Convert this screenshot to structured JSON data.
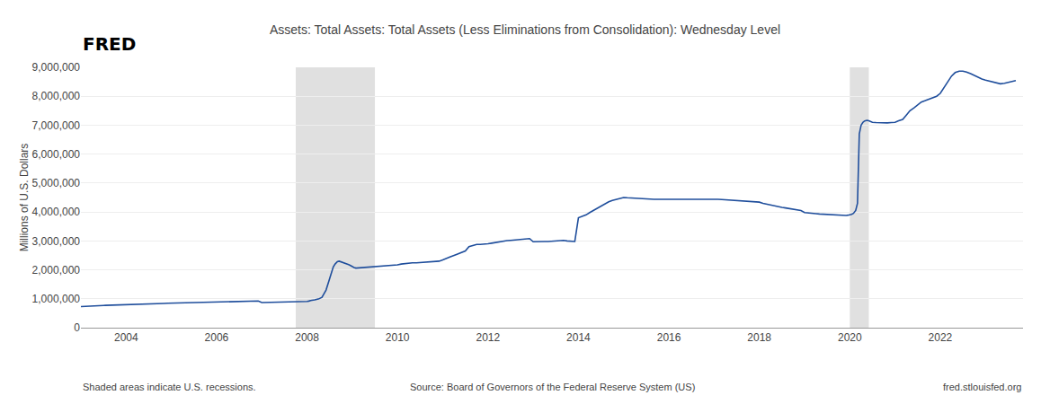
{
  "chart_data": {
    "type": "line",
    "title": "Assets: Total Assets: Total Assets (Less Eliminations from Consolidation): Wednesday Level",
    "ylabel": "Millions of U.S. Dollars",
    "annotations": [
      "FRED",
      "Shaded areas indicate U.S. recessions.",
      "Source: Board of Governors of the Federal Reserve System (US)",
      "fred.stlouisfed.org"
    ],
    "color": "#1f4e9c",
    "grid": "y",
    "recessions": {
      "ranges": [
        [
          2007.75,
          2009.5
        ],
        [
          2020.0,
          2020.42
        ]
      ],
      "color": "#d0d0d0"
    },
    "xlim": [
      2003.0,
      2023.83
    ],
    "ylim": [
      0,
      9000000
    ],
    "xticks": [
      2004,
      2006,
      2008,
      2010,
      2012,
      2014,
      2016,
      2018,
      2020,
      2022
    ],
    "yticks": [
      0,
      {
        "value": 1000000,
        "label": "1,000,000"
      },
      {
        "value": 2000000,
        "label": "2,000,000"
      },
      {
        "value": 3000000,
        "label": "3,000,000"
      },
      {
        "value": 4000000,
        "label": "4,000,000"
      },
      {
        "value": 5000000,
        "label": "5,000,000"
      },
      {
        "value": 6000000,
        "label": "6,000,000"
      },
      {
        "value": 7000000,
        "label": "7,000,000"
      },
      {
        "value": 8000000,
        "label": "8,000,000"
      },
      {
        "value": 9000000,
        "label": "9,000,000"
      }
    ],
    "x": [
      2003.0,
      2003.04,
      2003.08,
      2003.12,
      2003.17,
      2003.21,
      2003.25,
      2003.29,
      2003.33,
      2003.38,
      2003.42,
      2003.46,
      2003.5,
      2003.54,
      2003.58,
      2003.62,
      2003.67,
      2003.71,
      2003.75,
      2003.79,
      2003.83,
      2003.88,
      2003.92,
      2003.96,
      2004.0,
      2004.08,
      2004.17,
      2004.25,
      2004.33,
      2004.42,
      2004.5,
      2004.58,
      2004.67,
      2004.75,
      2004.83,
      2004.92,
      2005.0,
      2005.08,
      2005.17,
      2005.25,
      2005.33,
      2005.42,
      2005.5,
      2005.58,
      2005.67,
      2005.75,
      2005.83,
      2005.92,
      2006.0,
      2006.08,
      2006.17,
      2006.25,
      2006.33,
      2006.42,
      2006.5,
      2006.58,
      2006.67,
      2006.75,
      2006.83,
      2006.92,
      2007.0,
      2007.08,
      2007.17,
      2007.25,
      2007.33,
      2007.42,
      2007.5,
      2007.58,
      2007.67,
      2007.75,
      2007.83,
      2007.88,
      2008.0,
      2008.04,
      2008.08,
      2008.17,
      2008.25,
      2008.33,
      2008.42,
      2008.5,
      2008.58,
      2008.62,
      2008.67,
      2008.71,
      2008.75,
      2008.79,
      2008.83,
      2008.88,
      2008.92,
      2008.96,
      2009.0,
      2009.04,
      2009.08,
      2009.17,
      2009.25,
      2009.33,
      2009.42,
      2009.5,
      2009.58,
      2009.67,
      2009.75,
      2009.83,
      2009.92,
      2010.0,
      2010.08,
      2010.17,
      2010.25,
      2010.33,
      2010.42,
      2010.5,
      2010.58,
      2010.67,
      2010.75,
      2010.83,
      2010.92,
      2011.0,
      2011.08,
      2011.17,
      2011.25,
      2011.33,
      2011.42,
      2011.5,
      2011.58,
      2011.67,
      2011.75,
      2011.83,
      2011.92,
      2012.0,
      2012.08,
      2012.17,
      2012.25,
      2012.33,
      2012.42,
      2012.5,
      2012.58,
      2012.67,
      2012.75,
      2012.83,
      2012.92,
      2013.0,
      2013.08,
      2013.17,
      2013.25,
      2013.33,
      2013.42,
      2013.5,
      2013.58,
      2013.67,
      2013.75,
      2013.83,
      2013.92,
      2014.0,
      2014.08,
      2014.17,
      2014.25,
      2014.33,
      2014.42,
      2014.5,
      2014.58,
      2014.67,
      2014.75,
      2014.83,
      2014.92,
      2015.0,
      2015.08,
      2015.17,
      2015.25,
      2015.33,
      2015.42,
      2015.5,
      2015.58,
      2015.67,
      2015.75,
      2015.83,
      2015.92,
      2016.0,
      2016.08,
      2016.17,
      2016.25,
      2016.33,
      2016.42,
      2016.5,
      2016.58,
      2016.67,
      2016.75,
      2016.83,
      2016.92,
      2017.0,
      2017.08,
      2017.17,
      2017.25,
      2017.33,
      2017.42,
      2017.5,
      2017.58,
      2017.67,
      2017.75,
      2017.83,
      2017.92,
      2018.0,
      2018.08,
      2018.17,
      2018.25,
      2018.33,
      2018.42,
      2018.5,
      2018.58,
      2018.67,
      2018.75,
      2018.83,
      2018.92,
      2019.0,
      2019.08,
      2019.17,
      2019.25,
      2019.33,
      2019.42,
      2019.5,
      2019.58,
      2019.67,
      2019.75,
      2019.83,
      2019.88,
      2019.92,
      2019.96,
      2020.0,
      2020.04,
      2020.08,
      2020.13,
      2020.17,
      2020.21,
      2020.25,
      2020.29,
      2020.33,
      2020.38,
      2020.42,
      2020.46,
      2020.5,
      2020.58,
      2020.67,
      2020.75,
      2020.83,
      2020.92,
      2021.0,
      2021.08,
      2021.17,
      2021.25,
      2021.33,
      2021.42,
      2021.5,
      2021.58,
      2021.67,
      2021.75,
      2021.83,
      2021.92,
      2022.0,
      2022.08,
      2022.17,
      2022.25,
      2022.33,
      2022.42,
      2022.5,
      2022.58,
      2022.67,
      2022.75,
      2022.83,
      2022.92,
      2023.0,
      2023.08,
      2023.17,
      2023.25,
      2023.33,
      2023.42,
      2023.5,
      2023.58,
      2023.67
    ],
    "values": [
      730000,
      735000,
      738000,
      742000,
      746000,
      750000,
      752000,
      756000,
      760000,
      762000,
      764000,
      768000,
      770000,
      773000,
      776000,
      778000,
      780000,
      782000,
      784000,
      786000,
      788000,
      790000,
      792000,
      794000,
      796000,
      800000,
      806000,
      812000,
      816000,
      820000,
      824000,
      828000,
      832000,
      836000,
      840000,
      844000,
      848000,
      852000,
      856000,
      860000,
      864000,
      866000,
      868000,
      870000,
      872000,
      874000,
      876000,
      878000,
      882000,
      886000,
      890000,
      894000,
      898000,
      902000,
      906000,
      910000,
      914000,
      918000,
      920000,
      924000,
      870000,
      872000,
      874000,
      876000,
      878000,
      880000,
      882000,
      884000,
      888000,
      892000,
      896000,
      900000,
      910000,
      920000,
      940000,
      960000,
      990000,
      1050000,
      1300000,
      1700000,
      2100000,
      2200000,
      2280000,
      2300000,
      2280000,
      2260000,
      2240000,
      2220000,
      2180000,
      2150000,
      2100000,
      2080000,
      2060000,
      2070000,
      2080000,
      2090000,
      2100000,
      2110000,
      2120000,
      2130000,
      2140000,
      2150000,
      2160000,
      2170000,
      2200000,
      2220000,
      2230000,
      2240000,
      2240000,
      2250000,
      2260000,
      2270000,
      2280000,
      2290000,
      2300000,
      2340000,
      2400000,
      2450000,
      2500000,
      2550000,
      2600000,
      2650000,
      2800000,
      2850000,
      2880000,
      2880000,
      2880000,
      2900000,
      2920000,
      2950000,
      2970000,
      2990000,
      3010000,
      3020000,
      3030000,
      3040000,
      3050000,
      3060000,
      3080000,
      2970000,
      2980000,
      2980000,
      2980000,
      2980000,
      2990000,
      3000000,
      3010000,
      3020000,
      3000000,
      2990000,
      2980000,
      3800000,
      3850000,
      3900000,
      3980000,
      4050000,
      4130000,
      4200000,
      4280000,
      4350000,
      4400000,
      4430000,
      4450000,
      4500000,
      4490000,
      4480000,
      4470000,
      4460000,
      4460000,
      4450000,
      4450000,
      4440000,
      4440000,
      4440000,
      4440000,
      4440000,
      4440000,
      4440000,
      4440000,
      4440000,
      4450000,
      4450000,
      4450000,
      4460000,
      4460000,
      4460000,
      4460000,
      4450000,
      4440000,
      4430000,
      4420000,
      4410000,
      4400000,
      4400000,
      4390000,
      4380000,
      4370000,
      4360000,
      4360000,
      4340000,
      4300000,
      4270000,
      4230000,
      4200000,
      4180000,
      4160000,
      4140000,
      4120000,
      4100000,
      4080000,
      4050000,
      3980000,
      3960000,
      3950000,
      3940000,
      3930000,
      3920000,
      3910000,
      3900000,
      3890000,
      3880000,
      3870000,
      3870000,
      3880000,
      3890000,
      3900000,
      3920000,
      3950000,
      4050000,
      4300000,
      6700000,
      7000000,
      7100000,
      7150000,
      7170000,
      7150000,
      7130000,
      7100000,
      7090000,
      7080000,
      7070000,
      7080000,
      7090000,
      7100000,
      7150000,
      7200000,
      7350000,
      7500000,
      7600000,
      7700000,
      7800000,
      7850000,
      7900000,
      7950000,
      8000000,
      8100000,
      8300000,
      8500000,
      8700000,
      8820000,
      8870000,
      8870000,
      8840000,
      8780000,
      8720000,
      8650000,
      8600000,
      8560000,
      8530000,
      8490000,
      8450000,
      8430000,
      8450000,
      8480000,
      8510000,
      8540000
    ]
  }
}
